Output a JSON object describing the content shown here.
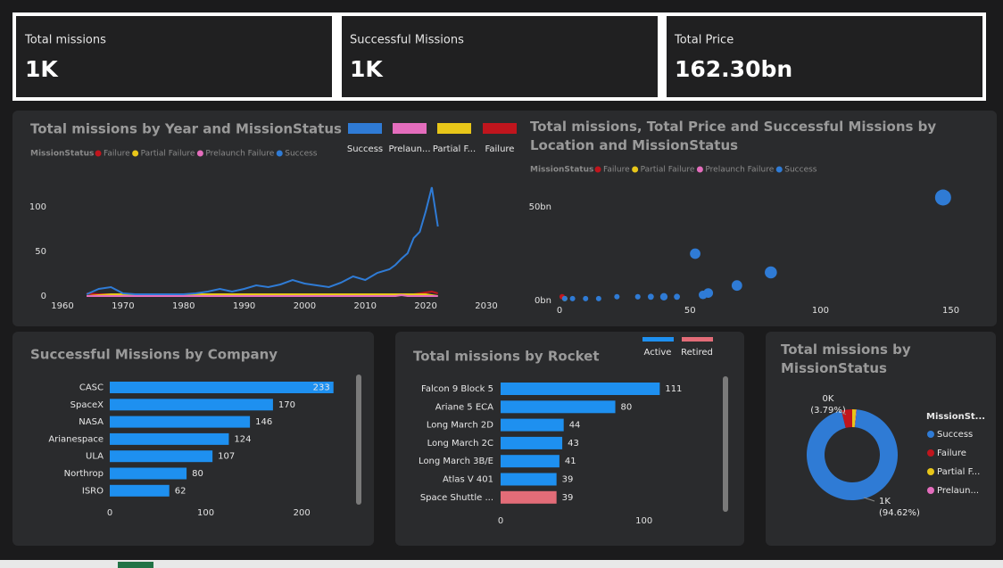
{
  "cards": [
    {
      "label": "Total missions",
      "value": "1K"
    },
    {
      "label": "Successful Missions",
      "value": "1K"
    },
    {
      "label": "Total Price",
      "value": "162.30bn"
    }
  ],
  "chart_data": [
    {
      "type": "line",
      "title": "Total missions by Year and MissionStatus",
      "legend_title": "MissionStatus",
      "overlay_legend": [
        "Success",
        "Prelaun...",
        "Partial F...",
        "Failure"
      ],
      "x": [
        1964,
        1966,
        1968,
        1970,
        1972,
        1974,
        1976,
        1978,
        1980,
        1982,
        1984,
        1986,
        1988,
        1990,
        1992,
        1994,
        1996,
        1998,
        2000,
        2002,
        2004,
        2006,
        2008,
        2010,
        2012,
        2014,
        2015,
        2016,
        2017,
        2018,
        2019,
        2020,
        2021,
        2022
      ],
      "series": [
        {
          "name": "Failure",
          "color": "#c0151d",
          "values": [
            3,
            2,
            2,
            2,
            1,
            1,
            1,
            1,
            1,
            1,
            1,
            1,
            1,
            1,
            1,
            1,
            1,
            1,
            1,
            1,
            1,
            1,
            1,
            1,
            1,
            2,
            2,
            2,
            2,
            2,
            3,
            4,
            5,
            3
          ]
        },
        {
          "name": "Partial Failure",
          "color": "#e8c619",
          "values": [
            0,
            1,
            2,
            2,
            2,
            2,
            2,
            2,
            2,
            2,
            2,
            2,
            2,
            2,
            2,
            2,
            2,
            2,
            2,
            2,
            2,
            2,
            2,
            2,
            2,
            2,
            2,
            2,
            2,
            2,
            2,
            2,
            1,
            0
          ]
        },
        {
          "name": "Prelaunch Failure",
          "color": "#e46dbd",
          "values": [
            0,
            0,
            0,
            0,
            0,
            0,
            0,
            0,
            0,
            0,
            0,
            0,
            0,
            0,
            0,
            0,
            0,
            0,
            0,
            0,
            0,
            0,
            0,
            0,
            0,
            0,
            0,
            1,
            0,
            0,
            0,
            0,
            0,
            0
          ]
        },
        {
          "name": "Success",
          "color": "#2f7bd5",
          "values": [
            2,
            8,
            10,
            3,
            2,
            2,
            2,
            2,
            2,
            3,
            5,
            8,
            5,
            8,
            12,
            10,
            13,
            18,
            14,
            12,
            10,
            15,
            22,
            18,
            26,
            30,
            35,
            42,
            48,
            65,
            72,
            95,
            122,
            78
          ]
        }
      ],
      "xlim": [
        1960,
        2030
      ],
      "xticks": [
        1960,
        1970,
        1980,
        1990,
        2000,
        2010,
        2020,
        2030
      ],
      "ylim": [
        0,
        125
      ],
      "yticks": [
        0,
        50,
        100
      ]
    },
    {
      "type": "scatter",
      "title": "Total missions, Total Price and Successful Missions by Location and MissionStatus",
      "legend_title": "MissionStatus",
      "series": [
        {
          "name": "Failure",
          "color": "#c0151d",
          "x": [
            1
          ],
          "y": [
            2
          ],
          "sizes": [
            10
          ]
        },
        {
          "name": "Partial Failure",
          "color": "#e8c619",
          "x": [
            2
          ],
          "y": [
            1
          ],
          "sizes": [
            5
          ]
        },
        {
          "name": "Prelaunch Failure",
          "color": "#e46dbd",
          "x": [],
          "y": [],
          "sizes": []
        },
        {
          "name": "Success",
          "color": "#2f7bd5",
          "x": [
            147,
            52,
            81,
            68,
            57,
            55,
            40,
            45,
            35,
            30,
            22,
            15,
            10,
            5,
            2
          ],
          "y": [
            55,
            25,
            15,
            8,
            4,
            3,
            2,
            2,
            2,
            2,
            2,
            1,
            1,
            1,
            1
          ],
          "sizes": [
            700,
            300,
            400,
            300,
            250,
            200,
            150,
            100,
            100,
            80,
            60,
            50,
            30,
            20,
            10
          ]
        }
      ],
      "xlim": [
        0,
        158
      ],
      "xticks": [
        0,
        50,
        100,
        150
      ],
      "ylim": [
        0,
        60
      ],
      "yticks": [
        {
          "value": 0,
          "label": "0bn"
        },
        {
          "value": 50,
          "label": "50bn"
        }
      ]
    },
    {
      "type": "hbar",
      "title": "Successful Missions by Company",
      "categories": [
        "CASC",
        "SpaceX",
        "NASA",
        "Arianespace",
        "ULA",
        "Northrop",
        "ISRO"
      ],
      "series": [
        {
          "name": null,
          "color": "#1e90f0",
          "values": [
            233,
            170,
            146,
            124,
            107,
            80,
            62
          ]
        }
      ],
      "xlim": [
        0,
        250
      ],
      "xticks": [
        0,
        100,
        200
      ]
    },
    {
      "type": "hbar",
      "title": "Total missions by Rocket",
      "categories": [
        "Falcon 9 Block 5",
        "Ariane 5 ECA",
        "Long March 2D",
        "Long March 2C",
        "Long March 3B/E",
        "Atlas V 401",
        "Space Shuttle ..."
      ],
      "series": [
        {
          "name": "Active",
          "color": "#1e90f0",
          "values": [
            111,
            80,
            44,
            43,
            41,
            39,
            null
          ]
        },
        {
          "name": "Retired",
          "color": "#e36c78",
          "values": [
            null,
            null,
            null,
            null,
            null,
            null,
            39
          ]
        }
      ],
      "xlim": [
        0,
        150
      ],
      "xticks": [
        0,
        100
      ]
    },
    {
      "type": "donut",
      "title": "Total missions by MissionStatus",
      "legend_title": "MissionSt...",
      "categories": [
        "Success",
        "Failure",
        "Partial F...",
        "Prelaun..."
      ],
      "colors": [
        "#2f7bd5",
        "#c0151d",
        "#e8c619",
        "#e46dbd"
      ],
      "values": [
        94.62,
        3.79,
        1.4,
        0.19
      ],
      "value_labels": [
        "1K\n(94.62%)",
        "0K\n(3.79%)",
        null,
        null
      ]
    }
  ]
}
